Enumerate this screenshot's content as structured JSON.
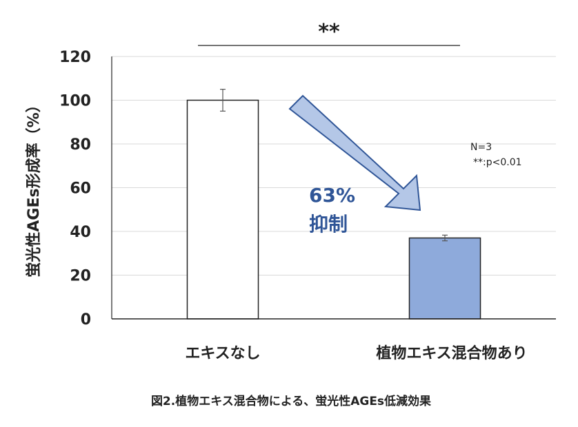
{
  "chart_data": {
    "type": "bar",
    "categories": [
      "エキスなし",
      "植物エキス混合物あり"
    ],
    "values": [
      100,
      37
    ],
    "errors": [
      5,
      1.3
    ],
    "bar_colors": [
      "#ffffff",
      "#8eaadb"
    ],
    "bar_edge_color": "#222222",
    "ylabel": "蛍光性AGEs形成率（%）",
    "xlabel": "",
    "ylim": [
      0,
      120
    ],
    "yticks": [
      0,
      20,
      40,
      60,
      80,
      100,
      120
    ],
    "grid": true,
    "significance": "**",
    "notes": [
      "N=3",
      "**:p<0.01"
    ],
    "annotation": [
      "63%",
      "抑制"
    ],
    "annotation_color": "#2f5597",
    "arrow_fill": "#b4c7e7",
    "arrow_edge": "#2f5597"
  },
  "caption": "図2.植物エキス混合物による、蛍光性AGEs低減効果"
}
